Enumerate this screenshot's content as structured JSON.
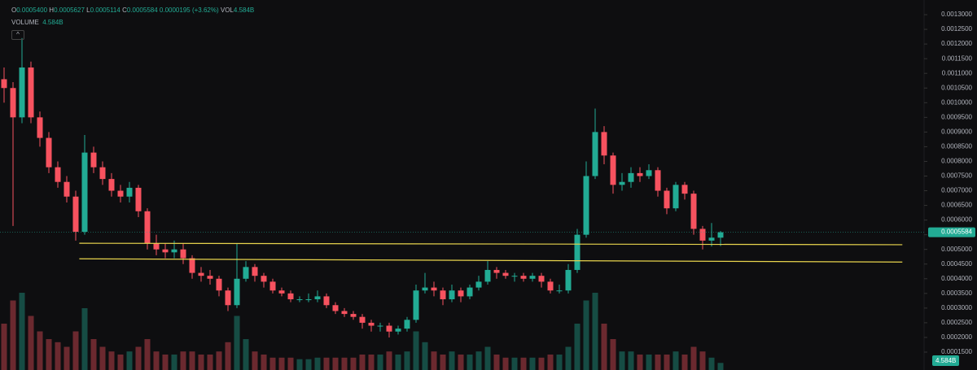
{
  "header": {
    "ohlc": [
      {
        "label": "O",
        "value": "0.0005400"
      },
      {
        "label": "H",
        "value": "0.0005627"
      },
      {
        "label": "L",
        "value": "0.0005114"
      },
      {
        "label": "C",
        "value": "0.0005584"
      }
    ],
    "change": "0.0000195 (+3.62%)",
    "vol_label": "VOL",
    "vol_value": "4.584B",
    "volume_label": "VOLUME",
    "volume_value": "4.584B"
  },
  "chart_data": {
    "type": "candlestick",
    "up_color": "#22ab94",
    "down_color": "#f7525f",
    "open": [
      0.00108,
      0.00105,
      0.00095,
      0.00112,
      0.00095,
      0.00088,
      0.00078,
      0.00073,
      0.00068,
      0.00056,
      0.00083,
      0.00078,
      0.00074,
      0.0007,
      0.00068,
      0.00071,
      0.00063,
      0.00052,
      0.0005,
      0.00049,
      0.0005,
      0.00047,
      0.00042,
      0.00041,
      0.0004,
      0.00036,
      0.00031,
      0.0004,
      0.00044,
      0.00041,
      0.00039,
      0.00036,
      0.00035,
      0.00033,
      0.00033,
      0.00033,
      0.00034,
      0.00031,
      0.00029,
      0.00028,
      0.00027,
      0.00025,
      0.00024,
      0.00024,
      0.00022,
      0.00023,
      0.00026,
      0.00036,
      0.00037,
      0.00036,
      0.00033,
      0.00036,
      0.00034,
      0.00037,
      0.00039,
      0.00043,
      0.00042,
      0.00041,
      0.00041,
      0.0004,
      0.00041,
      0.00039,
      0.00036,
      0.00036,
      0.00043,
      0.00055,
      0.00075,
      0.0009,
      0.00082,
      0.00072,
      0.00073,
      0.00076,
      0.00075,
      0.00077,
      0.0007,
      0.00064,
      0.00072,
      0.00069,
      0.00057,
      0.00053,
      0.00054
    ],
    "high": [
      0.00112,
      0.00107,
      0.00122,
      0.00114,
      0.00097,
      0.0009,
      0.0008,
      0.00075,
      0.0007,
      0.00089,
      0.00085,
      0.0008,
      0.00076,
      0.00072,
      0.00073,
      0.00072,
      0.00064,
      0.00055,
      0.00052,
      0.00053,
      0.00052,
      0.00048,
      0.00044,
      0.00043,
      0.00041,
      0.00037,
      0.00052,
      0.00046,
      0.00045,
      0.00042,
      0.0004,
      0.00037,
      0.00036,
      0.00034,
      0.00035,
      0.00036,
      0.00035,
      0.00032,
      0.0003,
      0.00029,
      0.00028,
      0.00026,
      0.00025,
      0.00025,
      0.00024,
      0.00027,
      0.00038,
      0.00042,
      0.00039,
      0.00037,
      0.00038,
      0.00037,
      0.00038,
      0.00041,
      0.00046,
      0.00044,
      0.00043,
      0.00042,
      0.00042,
      0.00042,
      0.00042,
      0.0004,
      0.00038,
      0.00045,
      0.00057,
      0.0008,
      0.00098,
      0.00092,
      0.00083,
      0.00076,
      0.00078,
      0.00078,
      0.00079,
      0.00078,
      0.00071,
      0.00073,
      0.00073,
      0.0007,
      0.00058,
      0.00059,
      0.0005627
    ],
    "low": [
      0.001,
      0.00058,
      0.00093,
      0.00093,
      0.00085,
      0.00076,
      0.00071,
      0.00066,
      0.00053,
      0.00055,
      0.00076,
      0.00072,
      0.00068,
      0.00066,
      0.00066,
      0.00061,
      0.0005,
      0.00048,
      0.00047,
      0.00047,
      0.00045,
      0.0004,
      0.00039,
      0.00038,
      0.00034,
      0.00029,
      0.0003,
      0.00039,
      0.00039,
      0.00037,
      0.00035,
      0.00034,
      0.00032,
      0.00032,
      0.00032,
      0.00032,
      0.0003,
      0.00028,
      0.00027,
      0.00026,
      0.00023,
      0.00022,
      0.00022,
      0.0002,
      0.00021,
      0.00022,
      0.00025,
      0.00035,
      0.00034,
      0.00031,
      0.00032,
      0.00032,
      0.00033,
      0.00036,
      0.00038,
      0.0004,
      0.0004,
      0.00039,
      0.00039,
      0.00039,
      0.00037,
      0.00035,
      0.00035,
      0.00035,
      0.00042,
      0.00054,
      0.00074,
      0.00079,
      0.00069,
      0.0007,
      0.00071,
      0.00073,
      0.00074,
      0.00068,
      0.00062,
      0.00063,
      0.00067,
      0.00055,
      0.0005,
      0.00051,
      0.0005114
    ],
    "close": [
      0.00105,
      0.00095,
      0.00112,
      0.00095,
      0.00088,
      0.00078,
      0.00073,
      0.00068,
      0.00056,
      0.00083,
      0.00078,
      0.00074,
      0.0007,
      0.00068,
      0.00071,
      0.00063,
      0.00052,
      0.0005,
      0.00049,
      0.0005,
      0.00047,
      0.00042,
      0.00041,
      0.0004,
      0.00036,
      0.00031,
      0.0004,
      0.00044,
      0.00041,
      0.00039,
      0.00036,
      0.00035,
      0.00033,
      0.00033,
      0.00033,
      0.00034,
      0.00031,
      0.00029,
      0.00028,
      0.00027,
      0.00025,
      0.00024,
      0.00024,
      0.00022,
      0.00023,
      0.00026,
      0.00036,
      0.00037,
      0.00036,
      0.00033,
      0.00036,
      0.00034,
      0.00037,
      0.00039,
      0.00043,
      0.00042,
      0.00041,
      0.00041,
      0.0004,
      0.00041,
      0.00039,
      0.00036,
      0.00036,
      0.00043,
      0.00055,
      0.00075,
      0.0009,
      0.00082,
      0.00072,
      0.00073,
      0.00076,
      0.00075,
      0.00077,
      0.0007,
      0.00064,
      0.00072,
      0.00069,
      0.00057,
      0.00053,
      0.00054,
      0.0005584
    ],
    "volume": [
      30,
      45,
      50,
      35,
      25,
      20,
      18,
      15,
      25,
      40,
      20,
      15,
      12,
      10,
      12,
      15,
      20,
      12,
      10,
      10,
      12,
      12,
      10,
      10,
      12,
      18,
      35,
      20,
      12,
      10,
      8,
      8,
      8,
      7,
      7,
      8,
      8,
      8,
      8,
      8,
      10,
      10,
      10,
      12,
      10,
      12,
      25,
      18,
      12,
      10,
      12,
      10,
      10,
      12,
      15,
      10,
      8,
      8,
      8,
      8,
      8,
      10,
      10,
      15,
      30,
      45,
      50,
      30,
      20,
      12,
      12,
      10,
      10,
      10,
      10,
      12,
      10,
      15,
      12,
      8,
      4.584
    ],
    "ylim": [
      8.9e-05,
      0.00135
    ],
    "yticks": [
      {
        "value": 0.0013,
        "label": "0.0013000"
      },
      {
        "value": 0.00125,
        "label": "0.0012500"
      },
      {
        "value": 0.0012,
        "label": "0.0012000"
      },
      {
        "value": 0.00115,
        "label": "0.0011500"
      },
      {
        "value": 0.0011,
        "label": "0.0011000"
      },
      {
        "value": 0.00105,
        "label": "0.0010500"
      },
      {
        "value": 0.001,
        "label": "0.0010000"
      },
      {
        "value": 0.00095,
        "label": "0.0009500"
      },
      {
        "value": 0.0009,
        "label": "0.0009000"
      },
      {
        "value": 0.00085,
        "label": "0.0008500"
      },
      {
        "value": 0.0008,
        "label": "0.0008000"
      },
      {
        "value": 0.00075,
        "label": "0.0007500"
      },
      {
        "value": 0.0007,
        "label": "0.0007000"
      },
      {
        "value": 0.00065,
        "label": "0.0006500"
      },
      {
        "value": 0.0006,
        "label": "0.0006000"
      },
      {
        "value": 0.00055,
        "label": "0.0005500"
      },
      {
        "value": 0.0005,
        "label": "0.0005000"
      },
      {
        "value": 0.00045,
        "label": "0.0004500"
      },
      {
        "value": 0.0004,
        "label": "0.0004000"
      },
      {
        "value": 0.00035,
        "label": "0.0003500"
      },
      {
        "value": 0.0003,
        "label": "0.0003000"
      },
      {
        "value": 0.00025,
        "label": "0.0002500"
      },
      {
        "value": 0.0002,
        "label": "0.0002000"
      },
      {
        "value": 0.00015,
        "label": "0.0001500"
      }
    ],
    "y2lim": [
      0,
      50
    ],
    "lines": [
      {
        "color": "#e8d44d",
        "x": [
          8.4,
          100.3
        ],
        "values": [
          0.000521,
          0.000516
        ]
      },
      {
        "color": "#e8d44d",
        "x": [
          8.4,
          100.3
        ],
        "values": [
          0.000468,
          0.000457
        ]
      }
    ]
  }
}
